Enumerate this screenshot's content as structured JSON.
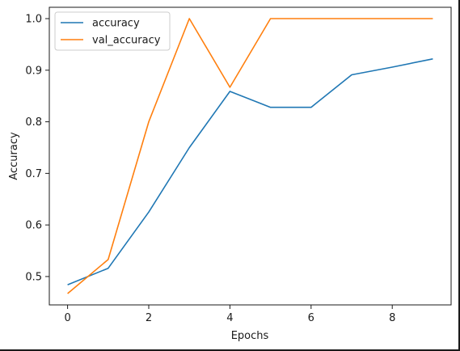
{
  "chart_data": {
    "type": "line",
    "title": "",
    "xlabel": "Epochs",
    "ylabel": "Accuracy",
    "xlim": [
      -0.45,
      9.45
    ],
    "ylim": [
      0.445,
      1.022
    ],
    "xticks": [
      0,
      2,
      4,
      6,
      8
    ],
    "yticks": [
      0.5,
      0.6,
      0.7,
      0.8,
      0.9,
      1.0
    ],
    "ytick_labels": [
      "0.5",
      "0.6",
      "0.7",
      "0.8",
      "0.9",
      "1.0"
    ],
    "grid": false,
    "legend_position": "top-left",
    "x": [
      0,
      1,
      2,
      3,
      4,
      5,
      6,
      7,
      8,
      9
    ],
    "series": [
      {
        "name": "accuracy",
        "color": "#1f77b4",
        "values": [
          0.484,
          0.516,
          0.625,
          0.75,
          0.859,
          0.828,
          0.828,
          0.891,
          0.906,
          0.922
        ]
      },
      {
        "name": "val_accuracy",
        "color": "#ff7f0e",
        "values": [
          0.467,
          0.533,
          0.8,
          1.0,
          0.867,
          1.0,
          1.0,
          1.0,
          1.0,
          1.0
        ]
      }
    ]
  }
}
